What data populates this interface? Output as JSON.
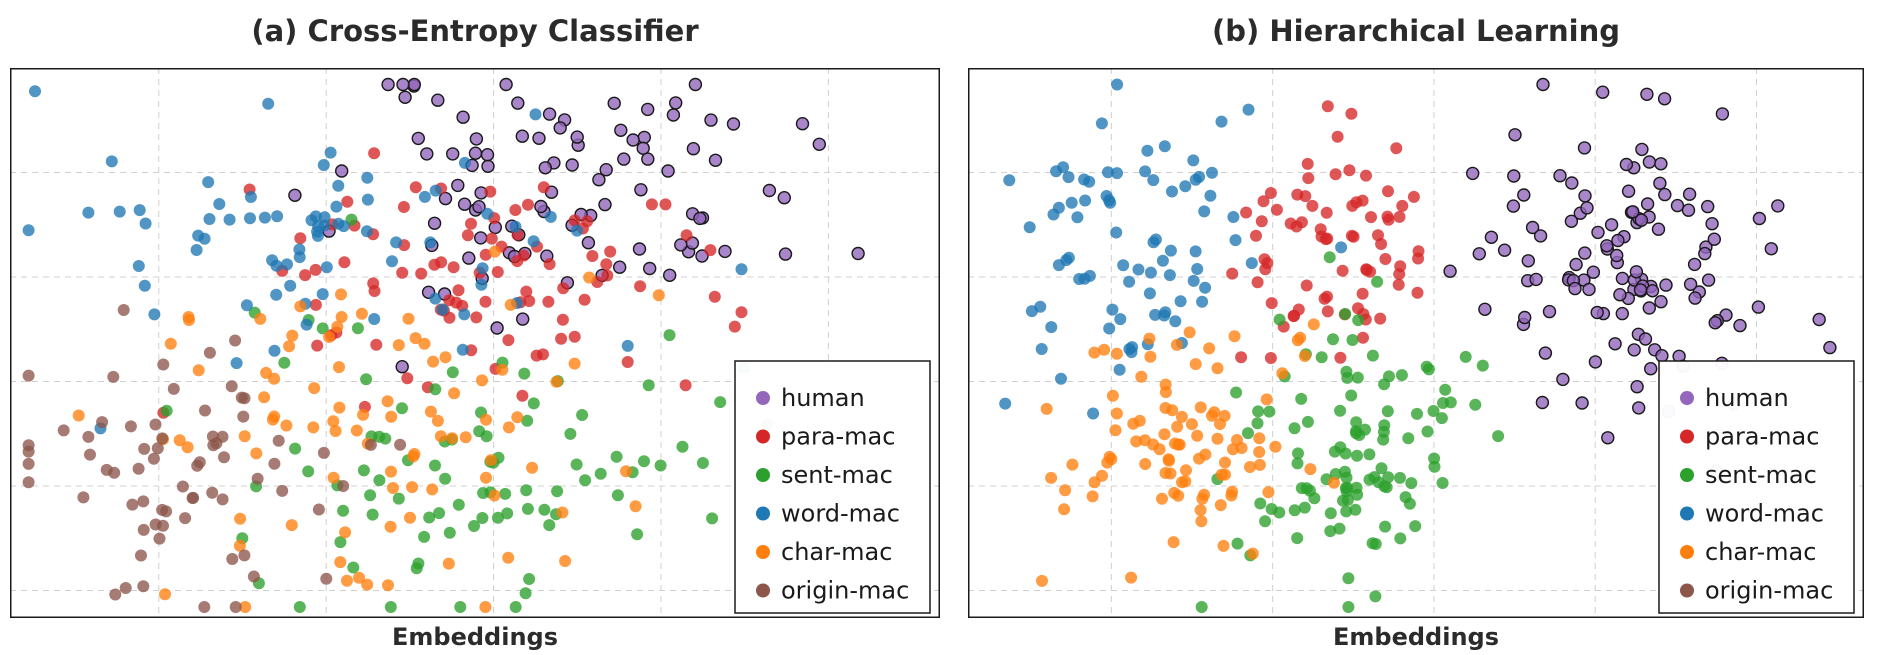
{
  "colors": {
    "human": "#9467bd",
    "para-mac": "#d62728",
    "sent-mac": "#2ca02c",
    "word-mac": "#1f77b4",
    "char-mac": "#ff7f0e",
    "origin-mac": "#8c564b"
  },
  "chart_data": [
    {
      "type": "scatter",
      "title": "(a) Cross-Entropy Classifier",
      "xlabel": "Embeddings",
      "ylabel": "",
      "grid": true,
      "legend_position": "bottom-right",
      "legend": [
        "human",
        "para-mac",
        "sent-mac",
        "word-mac",
        "char-mac",
        "origin-mac"
      ],
      "xlim": [
        0,
        100
      ],
      "ylim": [
        0,
        100
      ],
      "series": [
        {
          "name": "human",
          "cx": 59,
          "cy": 77,
          "sx": 12,
          "sy": 11,
          "n": 100,
          "outline": true,
          "seed": 11
        },
        {
          "name": "para-mac",
          "cx": 50,
          "cy": 62,
          "sx": 13,
          "sy": 11,
          "n": 90,
          "outline": false,
          "seed": 23
        },
        {
          "name": "sent-mac",
          "cx": 52,
          "cy": 29,
          "sx": 13,
          "sy": 14,
          "n": 90,
          "outline": false,
          "seed": 37
        },
        {
          "name": "word-mac",
          "cx": 36,
          "cy": 68,
          "sx": 13,
          "sy": 10,
          "n": 75,
          "outline": false,
          "seed": 41
        },
        {
          "name": "char-mac",
          "cx": 38,
          "cy": 32,
          "sx": 14,
          "sy": 15,
          "n": 90,
          "outline": false,
          "seed": 53
        },
        {
          "name": "origin-mac",
          "cx": 18,
          "cy": 28,
          "sx": 9,
          "sy": 11,
          "n": 70,
          "outline": false,
          "seed": 67
        }
      ]
    },
    {
      "type": "scatter",
      "title": "(b) Hierarchical Learning",
      "xlabel": "Embeddings",
      "ylabel": "",
      "grid": true,
      "legend_position": "bottom-right",
      "legend": [
        "human",
        "para-mac",
        "sent-mac",
        "word-mac",
        "char-mac",
        "origin-mac"
      ],
      "xlim": [
        0,
        100
      ],
      "ylim": [
        0,
        100
      ],
      "series": [
        {
          "name": "human",
          "cx": 74,
          "cy": 62,
          "sx": 8,
          "sy": 13,
          "n": 125,
          "outline": true,
          "seed": 79
        },
        {
          "name": "para-mac",
          "cx": 40,
          "cy": 68,
          "sx": 5,
          "sy": 11,
          "n": 75,
          "outline": false,
          "seed": 83
        },
        {
          "name": "sent-mac",
          "cx": 42,
          "cy": 30,
          "sx": 7,
          "sy": 13,
          "n": 110,
          "outline": false,
          "seed": 97
        },
        {
          "name": "word-mac",
          "cx": 19,
          "cy": 68,
          "sx": 7,
          "sy": 13,
          "n": 80,
          "outline": false,
          "seed": 101
        },
        {
          "name": "char-mac",
          "cx": 24,
          "cy": 33,
          "sx": 7,
          "sy": 10,
          "n": 95,
          "outline": false,
          "seed": 113
        },
        {
          "name": "origin-mac",
          "cx": 0,
          "cy": 0,
          "sx": 0,
          "sy": 0,
          "n": 0,
          "outline": false,
          "seed": 1
        }
      ]
    }
  ]
}
